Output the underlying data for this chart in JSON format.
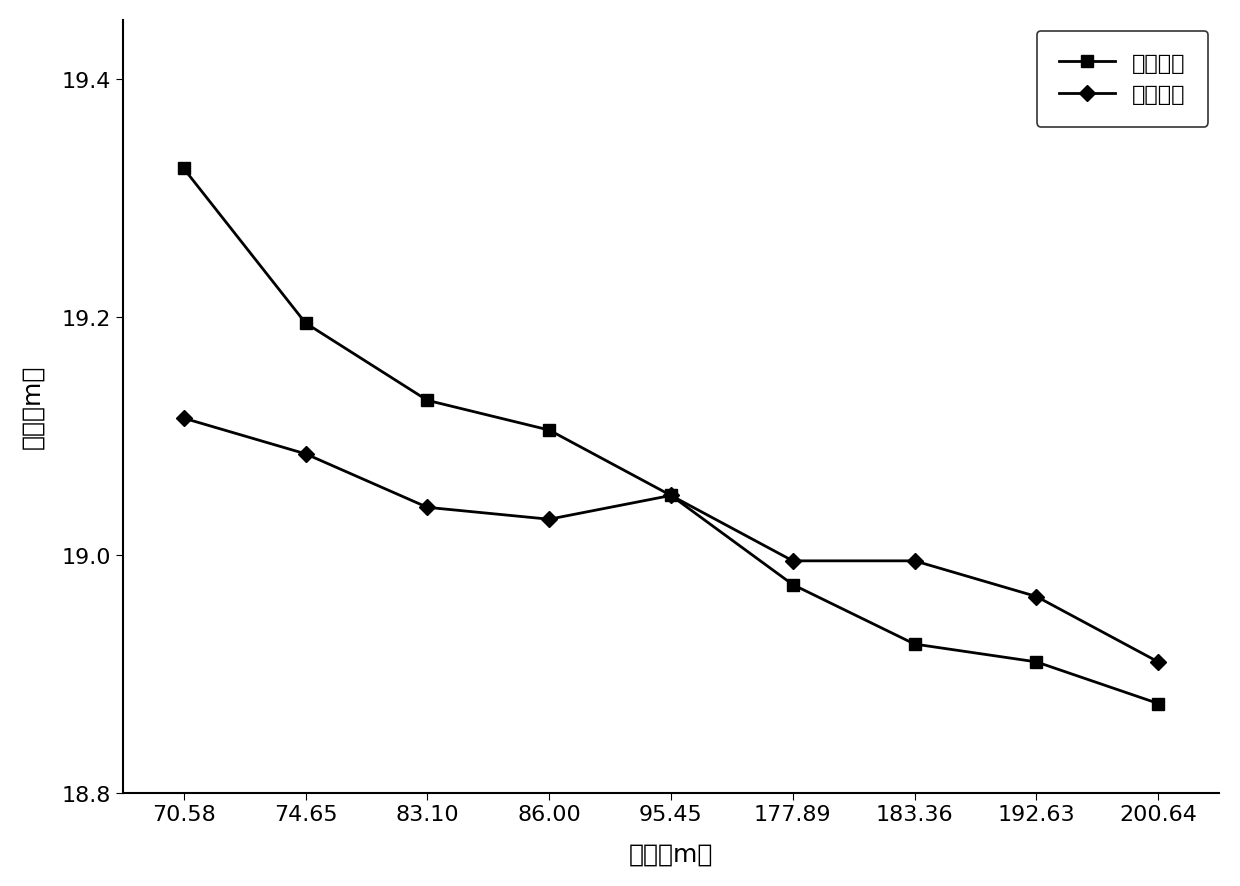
{
  "x_labels": [
    "70.58",
    "74.65",
    "83.10",
    "86.00",
    "95.45",
    "177.89",
    "183.36",
    "192.63",
    "200.64"
  ],
  "x_indices": [
    0,
    1,
    2,
    3,
    4,
    5,
    6,
    7,
    8
  ],
  "series1_name": "管内水位",
  "series2_name": "管外水位",
  "xlabel": "深度（m）",
  "ylabel": "水位（m）",
  "series1_values": [
    19.325,
    19.195,
    19.13,
    19.105,
    19.05,
    18.975,
    18.925,
    18.91,
    18.875
  ],
  "series2_values": [
    19.115,
    19.085,
    19.04,
    19.03,
    19.05,
    18.995,
    18.995,
    18.965,
    18.91
  ],
  "ylim": [
    18.8,
    19.45
  ],
  "yticks": [
    18.8,
    19.0,
    19.2,
    19.4
  ],
  "line_color": "#000000",
  "marker1": "s",
  "marker2": "D",
  "markersize": 8,
  "linewidth": 2,
  "legend_loc": "upper right",
  "xlabel_fontsize": 18,
  "ylabel_fontsize": 18,
  "tick_fontsize": 16,
  "legend_fontsize": 16,
  "background_color": "#ffffff"
}
